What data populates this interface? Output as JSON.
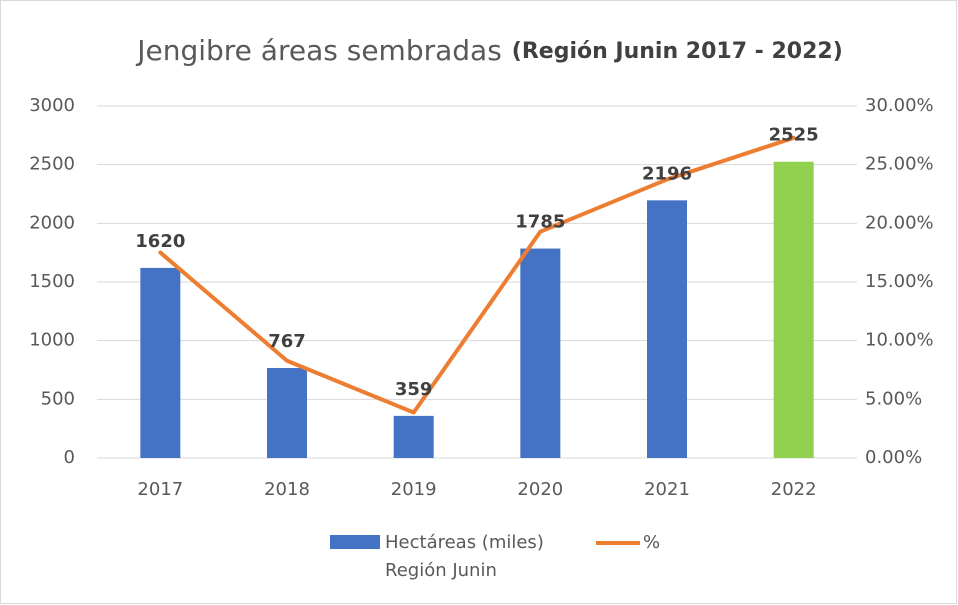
{
  "chart_data": {
    "type": "bar-line",
    "title": "Jengibre áreas sembradas",
    "subtitle": "(Región Junin 2017 - 2022)",
    "categories": [
      "2017",
      "2018",
      "2019",
      "2020",
      "2021",
      "2022"
    ],
    "series": [
      {
        "name": "Hectáreas (miles)",
        "type": "bar",
        "color": "#4472c4",
        "colors": [
          "#4472c4",
          "#4472c4",
          "#4472c4",
          "#4472c4",
          "#4472c4",
          "#92d050"
        ],
        "values": [
          1620,
          767,
          359,
          1785,
          2196,
          2525
        ]
      },
      {
        "name": "%",
        "type": "line",
        "axis": "y2",
        "color": "#ed7d31",
        "values": [
          17.51,
          8.29,
          3.88,
          19.29,
          23.74,
          27.29
        ]
      }
    ],
    "legend_note": "Región Junin",
    "ylim": [
      0,
      3000
    ],
    "yticks": [
      0,
      500,
      1000,
      1500,
      2000,
      2500,
      3000
    ],
    "y2lim": [
      0,
      30
    ],
    "y2ticks": [
      {
        "value": 0,
        "label": "0.00%"
      },
      {
        "value": 5,
        "label": "5.00%"
      },
      {
        "value": 10,
        "label": "10.00%"
      },
      {
        "value": 15,
        "label": "15.00%"
      },
      {
        "value": 20,
        "label": "20.00%"
      },
      {
        "value": 25,
        "label": "25.00%"
      },
      {
        "value": 30,
        "label": "30.00%"
      }
    ],
    "grid": true
  }
}
